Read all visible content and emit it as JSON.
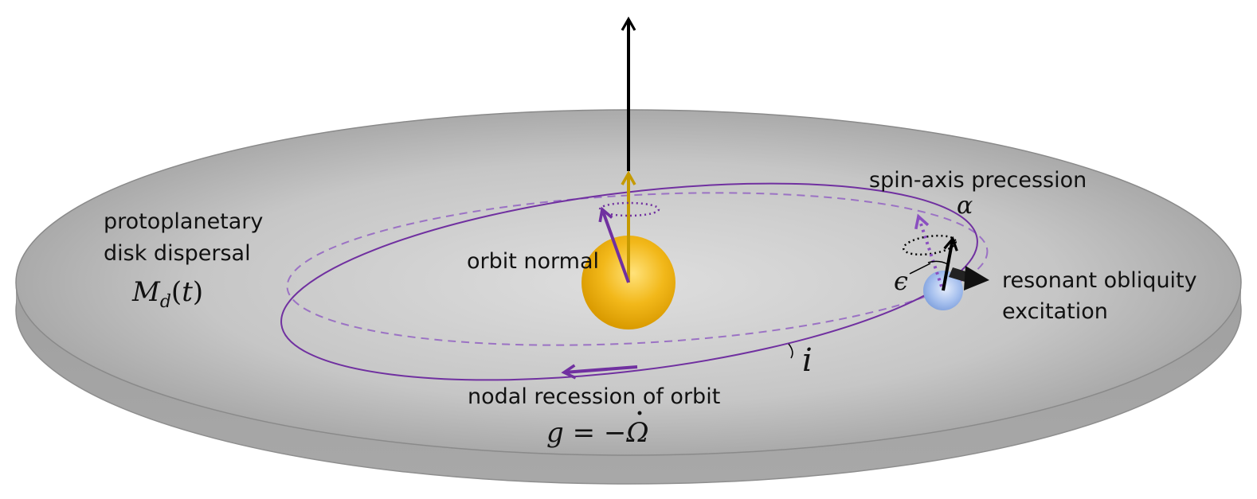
{
  "labels": {
    "disk_line1": "protoplanetary",
    "disk_line2": "disk dispersal",
    "disk_mass": "M_d(t)",
    "orbit_normal": "orbit normal",
    "spin_precession": "spin-axis precession",
    "alpha": "α",
    "epsilon": "ϵ",
    "resonant_line1": "resonant obliquity",
    "resonant_line2": "excitation",
    "inclination": "i",
    "nodal_recession": "nodal recession of orbit",
    "g_formula_lhs": "g = −",
    "g_formula_omega": "Ω"
  },
  "colors": {
    "disk_light": "#d9d9d9",
    "disk_dark": "#a4a4a4",
    "disk_edge": "#8c8c8c",
    "orbit": "#7030a0",
    "orbit_dashed": "#9b72c4",
    "star": "#e8a800",
    "planet": "#9bb8ec",
    "normal_arrow": "#c59a00",
    "black": "#000000"
  }
}
